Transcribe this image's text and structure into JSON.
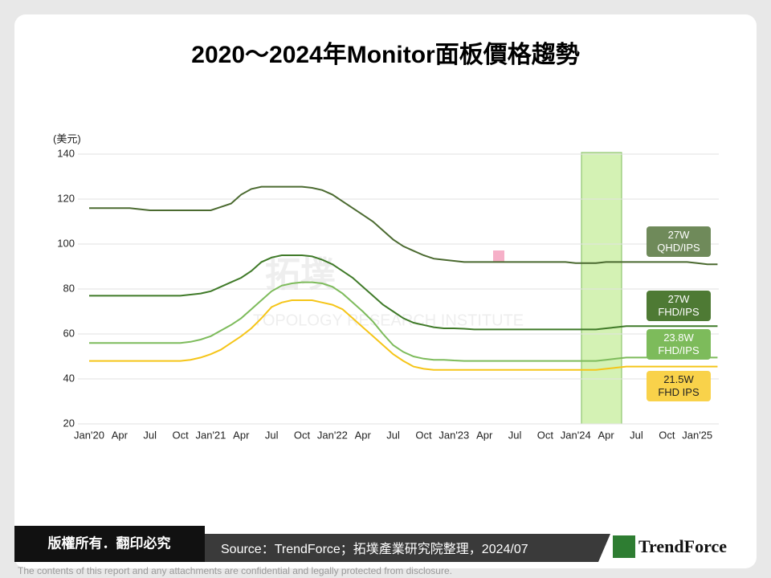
{
  "header": {
    "title": "2020～2024年Monitor面板價格趨勢"
  },
  "watermark": {
    "logo": "拓墣",
    "name": "TOPOLOGY RESEARCH INSTITUTE"
  },
  "chart_data": {
    "type": "line",
    "y_unit": "(美元)",
    "categories": [
      "Jan'20",
      null,
      null,
      "Apr",
      null,
      null,
      "Jul",
      null,
      null,
      "Oct",
      null,
      null,
      "Jan'21",
      null,
      null,
      "Apr",
      null,
      null,
      "Jul",
      null,
      null,
      "Oct",
      null,
      null,
      "Jan'22",
      null,
      null,
      "Apr",
      null,
      null,
      "Jul",
      null,
      null,
      "Oct",
      null,
      null,
      "Jan'23",
      null,
      null,
      "Apr",
      null,
      null,
      "Jul",
      null,
      null,
      "Oct",
      null,
      null,
      "Jan'24",
      null,
      null,
      "Apr",
      null,
      null,
      "Jul",
      null,
      null,
      "Oct",
      null,
      null,
      "Jan'25",
      null,
      null
    ],
    "ylim": [
      20,
      140
    ],
    "yticks": [
      20,
      40,
      60,
      80,
      100,
      120,
      140
    ],
    "grid": true,
    "series": [
      {
        "name": "27W\nQHD/IPS",
        "color": "#4b6a30",
        "values": [
          116,
          116,
          116,
          116,
          116,
          115.5,
          115,
          115,
          115,
          115,
          115,
          115,
          115,
          116.5,
          118,
          122,
          124.5,
          125.5,
          125.5,
          125.5,
          125.5,
          125.5,
          125,
          124,
          122,
          119,
          116,
          113,
          110,
          106,
          102,
          99,
          97,
          95,
          93.5,
          93,
          92.5,
          92,
          92,
          92,
          92,
          92,
          92,
          92,
          92,
          92,
          92,
          92,
          91.5,
          91.5,
          91.5,
          92,
          92,
          92,
          92,
          92,
          92,
          92,
          92,
          92,
          91.5,
          91,
          91
        ]
      },
      {
        "name": "27W\nFHD/IPS",
        "color": "#3f7a28",
        "values": [
          77,
          77,
          77,
          77,
          77,
          77,
          77,
          77,
          77,
          77,
          77.5,
          78,
          79,
          81,
          83,
          85,
          88,
          92,
          94,
          95,
          95,
          95,
          94.5,
          93,
          91,
          88,
          85,
          81,
          77,
          73,
          70,
          67,
          65,
          64,
          63,
          62.5,
          62.5,
          62.3,
          62,
          62,
          62,
          62,
          62,
          62,
          62,
          62,
          62,
          62,
          62,
          62,
          62,
          62.5,
          63,
          63.5,
          63.5,
          63.5,
          63.5,
          63.5,
          63.5,
          63.5,
          63.5,
          63.5,
          63.5
        ]
      },
      {
        "name": "23.8W\nFHD/IPS",
        "color": "#7dbb5b",
        "values": [
          56,
          56,
          56,
          56,
          56,
          56,
          56,
          56,
          56,
          56,
          56.5,
          57.5,
          59,
          61.5,
          64,
          67,
          71,
          75,
          79,
          81.5,
          82.5,
          83,
          83,
          82.5,
          81,
          78,
          74,
          70,
          65.5,
          60,
          55,
          52,
          50,
          49,
          48.5,
          48.5,
          48.2,
          48,
          48,
          48,
          48,
          48,
          48,
          48,
          48,
          48,
          48,
          48,
          48,
          48,
          48,
          48.5,
          49,
          49.5,
          49.5,
          49.5,
          49.5,
          49.5,
          49.5,
          49.5,
          49.5,
          49.5,
          49.5
        ]
      },
      {
        "name": "21.5W\nFHD IPS",
        "color": "#f5c518",
        "values": [
          48,
          48,
          48,
          48,
          48,
          48,
          48,
          48,
          48,
          48,
          48.5,
          49.5,
          51,
          53,
          56,
          59,
          62.5,
          67,
          72,
          74,
          75,
          75,
          75,
          74,
          73,
          71,
          67,
          63,
          59,
          55,
          51,
          48,
          45.5,
          44.5,
          44,
          44,
          44,
          44,
          44,
          44,
          44,
          44,
          44,
          44,
          44,
          44,
          44,
          44,
          44,
          44,
          44,
          44.5,
          45,
          45.5,
          45.5,
          45.5,
          45.5,
          45.5,
          45.5,
          45.5,
          45.5,
          45.5,
          45.5
        ]
      }
    ]
  },
  "footer": {
    "rights": "版權所有．翻印必究",
    "source": "Source：TrendForce；拓墣產業研究院整理，2024/07",
    "logo": "TrendForce",
    "disclaimer": "The contents of this report and any attachments are confidential and legally protected from disclosure."
  }
}
